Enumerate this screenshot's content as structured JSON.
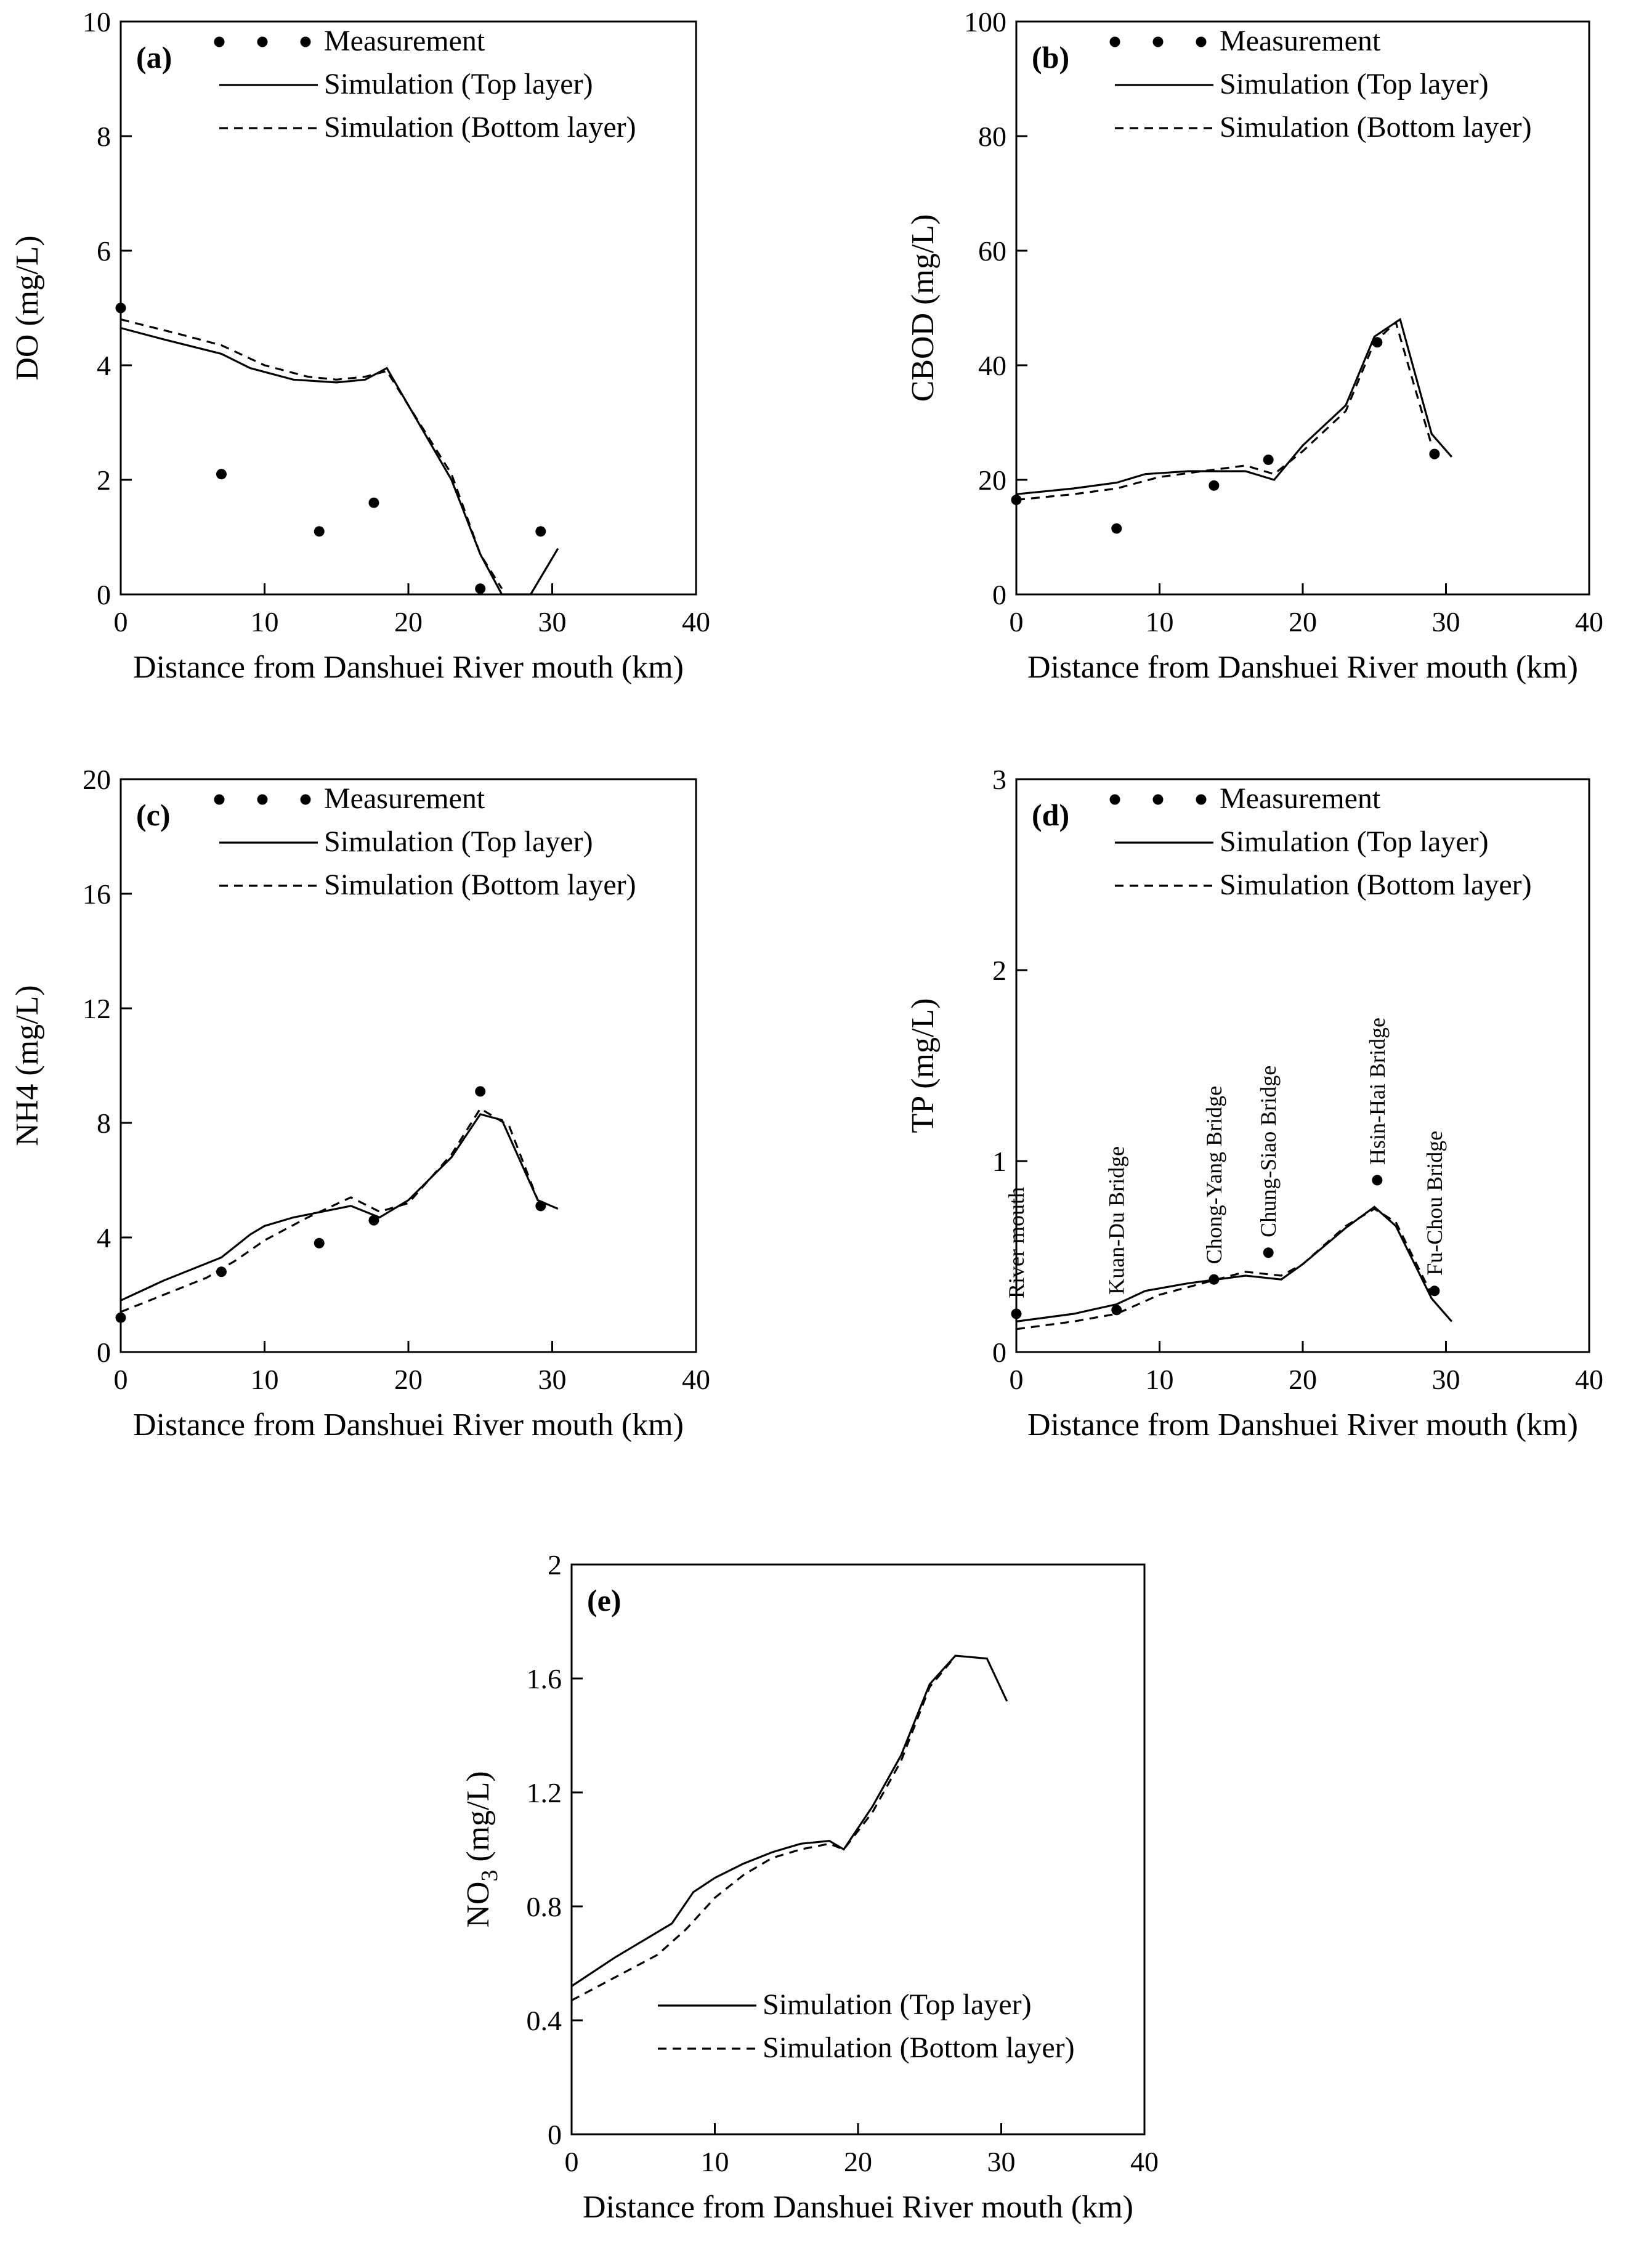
{
  "chart_data": [
    {
      "id": "a",
      "type": "line",
      "panel_label": "(a)",
      "xlabel": "Distance from Danshuei River mouth (km)",
      "ylabel": "DO (mg/L)",
      "xlim": [
        0,
        40
      ],
      "ylim": [
        0,
        10
      ],
      "xticks": [
        0,
        10,
        20,
        30,
        40
      ],
      "yticks": [
        0,
        2,
        4,
        6,
        8,
        10
      ],
      "grid": false,
      "legend": [
        "Measurement",
        "Simulation (Top layer)",
        "Simulation (Bottom layer)"
      ],
      "series": [
        {
          "name": "Measurement",
          "kind": "points",
          "x": [
            0,
            7,
            13.8,
            17.6,
            25,
            29.2
          ],
          "y": [
            5.0,
            2.1,
            1.1,
            1.6,
            0.1,
            1.1
          ]
        },
        {
          "name": "Simulation (Top layer)",
          "kind": "solid",
          "x": [
            0,
            3,
            7,
            9,
            12,
            15,
            17,
            18.5,
            20,
            23,
            25,
            26.5,
            28.5,
            30.4
          ],
          "y": [
            4.65,
            4.45,
            4.2,
            3.95,
            3.75,
            3.7,
            3.75,
            3.95,
            3.3,
            2.0,
            0.7,
            0.0,
            0.0,
            0.8
          ]
        },
        {
          "name": "Simulation (Bottom layer)",
          "kind": "dashed",
          "x": [
            0,
            4,
            7,
            10,
            13,
            15,
            17,
            18.5,
            20,
            23,
            25,
            26.5
          ],
          "y": [
            4.8,
            4.55,
            4.35,
            4.0,
            3.8,
            3.75,
            3.8,
            3.9,
            3.3,
            2.1,
            0.7,
            0.1
          ]
        }
      ]
    },
    {
      "id": "b",
      "type": "line",
      "panel_label": "(b)",
      "xlabel": "Distance from Danshuei River mouth (km)",
      "ylabel": "CBOD (mg/L)",
      "xlim": [
        0,
        40
      ],
      "ylim": [
        0,
        100
      ],
      "xticks": [
        0,
        10,
        20,
        30,
        40
      ],
      "yticks": [
        0,
        20,
        40,
        60,
        80,
        100
      ],
      "grid": false,
      "legend": [
        "Measurement",
        "Simulation (Top layer)",
        "Simulation (Bottom layer)"
      ],
      "series": [
        {
          "name": "Measurement",
          "kind": "points",
          "x": [
            0,
            7,
            13.8,
            17.6,
            25.2,
            29.2
          ],
          "y": [
            16.5,
            11.5,
            19.0,
            23.5,
            44.0,
            24.5
          ]
        },
        {
          "name": "Simulation (Top layer)",
          "kind": "solid",
          "x": [
            0,
            4,
            7,
            9,
            12,
            16,
            18,
            20,
            23,
            25,
            26.8,
            29,
            30.4
          ],
          "y": [
            17.5,
            18.5,
            19.5,
            21.0,
            21.5,
            21.5,
            20.0,
            26.0,
            33.0,
            45.0,
            48.0,
            28.0,
            24.0
          ]
        },
        {
          "name": "Simulation (Bottom layer)",
          "kind": "dashed",
          "x": [
            0,
            4,
            7,
            10,
            13,
            16,
            18,
            20,
            23,
            25,
            26.5,
            29
          ],
          "y": [
            16.5,
            17.5,
            18.5,
            20.5,
            21.5,
            22.5,
            21.0,
            25.0,
            32.0,
            44.0,
            47.5,
            26.0
          ]
        }
      ]
    },
    {
      "id": "c",
      "type": "line",
      "panel_label": "(c)",
      "xlabel": "Distance from Danshuei River mouth (km)",
      "ylabel": "NH4 (mg/L)",
      "xlim": [
        0,
        40
      ],
      "ylim": [
        0,
        20
      ],
      "xticks": [
        0,
        10,
        20,
        30,
        40
      ],
      "yticks": [
        0,
        4,
        8,
        12,
        16,
        20
      ],
      "grid": false,
      "legend": [
        "Measurement",
        "Simulation (Top layer)",
        "Simulation (Bottom layer)"
      ],
      "series": [
        {
          "name": "Measurement",
          "kind": "points",
          "x": [
            0,
            7,
            13.8,
            17.6,
            25,
            29.2
          ],
          "y": [
            1.2,
            2.8,
            3.8,
            4.6,
            9.1,
            5.1
          ]
        },
        {
          "name": "Simulation (Top layer)",
          "kind": "solid",
          "x": [
            0,
            3,
            7,
            9,
            10,
            12,
            14,
            16,
            18,
            20,
            23,
            25,
            26.5,
            29,
            30.4
          ],
          "y": [
            1.8,
            2.5,
            3.3,
            4.1,
            4.4,
            4.7,
            4.9,
            5.1,
            4.7,
            5.3,
            6.8,
            8.3,
            8.1,
            5.3,
            5.0
          ]
        },
        {
          "name": "Simulation (Bottom layer)",
          "kind": "dashed",
          "x": [
            0,
            3,
            6,
            8,
            10,
            13,
            16,
            18,
            20,
            23,
            25,
            27,
            29
          ],
          "y": [
            1.4,
            2.0,
            2.6,
            3.2,
            3.9,
            4.7,
            5.4,
            4.9,
            5.2,
            6.9,
            8.5,
            7.9,
            5.3
          ]
        }
      ]
    },
    {
      "id": "d",
      "type": "line",
      "panel_label": "(d)",
      "xlabel": "Distance from Danshuei River mouth (km)",
      "ylabel": "TP (mg/L)",
      "xlim": [
        0,
        40
      ],
      "ylim": [
        0,
        3
      ],
      "xticks": [
        0,
        10,
        20,
        30,
        40
      ],
      "yticks": [
        0,
        1,
        2,
        3
      ],
      "grid": false,
      "legend": [
        "Measurement",
        "Simulation (Top layer)",
        "Simulation (Bottom layer)"
      ],
      "series": [
        {
          "name": "Measurement",
          "kind": "points",
          "x": [
            0,
            7,
            13.8,
            17.6,
            25.2,
            29.2
          ],
          "y": [
            0.2,
            0.22,
            0.38,
            0.52,
            0.9,
            0.32
          ]
        },
        {
          "name": "Simulation (Top layer)",
          "kind": "solid",
          "x": [
            0,
            4,
            7,
            9,
            12,
            16,
            18.5,
            20,
            23,
            25,
            26.5,
            29,
            30.4
          ],
          "y": [
            0.16,
            0.2,
            0.25,
            0.32,
            0.36,
            0.4,
            0.38,
            0.46,
            0.65,
            0.76,
            0.66,
            0.28,
            0.16
          ]
        },
        {
          "name": "Simulation (Bottom layer)",
          "kind": "dashed",
          "x": [
            0,
            4,
            7,
            10,
            13,
            16,
            18.5,
            20,
            23,
            25,
            26.5,
            29
          ],
          "y": [
            0.12,
            0.16,
            0.2,
            0.3,
            0.36,
            0.42,
            0.4,
            0.46,
            0.66,
            0.75,
            0.68,
            0.3
          ]
        }
      ],
      "annotations": [
        {
          "text": "River mouth",
          "x": 0
        },
        {
          "text": "Kuan-Du Bridge",
          "x": 7
        },
        {
          "text": "Chong-Yang Bridge",
          "x": 13.8
        },
        {
          "text": "Chung-Siao Bridge",
          "x": 17.6
        },
        {
          "text": "Hsin-Hai Bridge",
          "x": 25.2
        },
        {
          "text": "Fu-Chou Bridge",
          "x": 29.2
        }
      ]
    },
    {
      "id": "e",
      "type": "line",
      "panel_label": "(e)",
      "xlabel": "Distance from Danshuei River mouth (km)",
      "ylabel": "NO3 (mg/L)",
      "ylabel_main": "NO",
      "ylabel_sub": "3",
      "ylabel_unit": " (mg/L)",
      "xlim": [
        0,
        40
      ],
      "ylim": [
        0,
        2
      ],
      "xticks": [
        0,
        10,
        20,
        30,
        40
      ],
      "yticks": [
        0,
        0.4,
        0.8,
        1.2,
        1.6,
        2
      ],
      "grid": false,
      "legend": [
        "Simulation (Top layer)",
        "Simulation (Bottom layer)"
      ],
      "series": [
        {
          "name": "Simulation (Top layer)",
          "kind": "solid",
          "x": [
            0,
            3,
            7,
            8.5,
            10,
            12,
            14,
            16,
            18,
            19,
            21,
            23,
            25,
            26.8,
            29,
            30.4
          ],
          "y": [
            0.52,
            0.62,
            0.74,
            0.85,
            0.9,
            0.95,
            0.99,
            1.02,
            1.03,
            1.0,
            1.15,
            1.33,
            1.58,
            1.68,
            1.67,
            1.52
          ]
        },
        {
          "name": "Simulation (Bottom layer)",
          "kind": "dashed",
          "x": [
            0,
            3,
            6,
            8,
            10,
            12,
            14,
            16,
            18,
            19,
            21,
            23,
            25,
            26.5
          ],
          "y": [
            0.47,
            0.55,
            0.63,
            0.72,
            0.83,
            0.91,
            0.97,
            1.0,
            1.02,
            1.0,
            1.13,
            1.31,
            1.57,
            1.66
          ]
        }
      ]
    }
  ]
}
